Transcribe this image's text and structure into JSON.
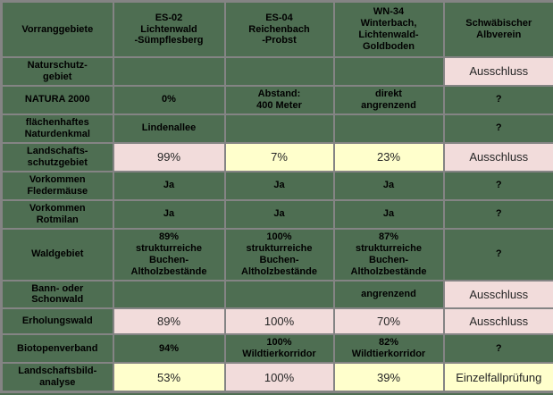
{
  "colors": {
    "green": "#4e6e52",
    "pink": "#f2dcdb",
    "yellow": "#ffffcc",
    "border": "#848484"
  },
  "table": {
    "header": {
      "corner": "Vorranggebiete",
      "columns": [
        "ES-02\nLichtenwald\n-Sümpflesberg",
        "ES-04\nReichenbach\n-Probst",
        "WN-34\nWinterbach,\nLichtenwald-\nGoldboden",
        "Schwäbischer\nAlbverein"
      ]
    },
    "rows": [
      {
        "label": "Naturschutz-\ngebiet",
        "cells": [
          {
            "text": "",
            "bg": "green",
            "bold": true
          },
          {
            "text": "",
            "bg": "green",
            "bold": true
          },
          {
            "text": "",
            "bg": "green",
            "bold": true
          },
          {
            "text": "Ausschluss",
            "bg": "pink",
            "bold": false
          }
        ]
      },
      {
        "label": "NATURA 2000",
        "cells": [
          {
            "text": "0%",
            "bg": "green",
            "bold": true
          },
          {
            "text": "Abstand:\n400 Meter",
            "bg": "green",
            "bold": true
          },
          {
            "text": "direkt\nangrenzend",
            "bg": "green",
            "bold": true
          },
          {
            "text": "?",
            "bg": "green",
            "bold": true
          }
        ]
      },
      {
        "label": "flächenhaftes\nNaturdenkmal",
        "cells": [
          {
            "text": "Lindenallee",
            "bg": "green",
            "bold": true
          },
          {
            "text": "",
            "bg": "green",
            "bold": true
          },
          {
            "text": "",
            "bg": "green",
            "bold": true
          },
          {
            "text": "?",
            "bg": "green",
            "bold": true
          }
        ]
      },
      {
        "label": "Landschafts-\nschutzgebiet",
        "cells": [
          {
            "text": "99%",
            "bg": "pink",
            "bold": false
          },
          {
            "text": "7%",
            "bg": "yellow",
            "bold": false
          },
          {
            "text": "23%",
            "bg": "yellow",
            "bold": false
          },
          {
            "text": "Ausschluss",
            "bg": "pink",
            "bold": false
          }
        ]
      },
      {
        "label": "Vorkommen\nFledermäuse",
        "cells": [
          {
            "text": "Ja",
            "bg": "green",
            "bold": true
          },
          {
            "text": "Ja",
            "bg": "green",
            "bold": true
          },
          {
            "text": "Ja",
            "bg": "green",
            "bold": true
          },
          {
            "text": "?",
            "bg": "green",
            "bold": true
          }
        ]
      },
      {
        "label": "Vorkommen\nRotmilan",
        "cells": [
          {
            "text": "Ja",
            "bg": "green",
            "bold": true
          },
          {
            "text": "Ja",
            "bg": "green",
            "bold": true
          },
          {
            "text": "Ja",
            "bg": "green",
            "bold": true
          },
          {
            "text": "?",
            "bg": "green",
            "bold": true
          }
        ]
      },
      {
        "label": "Waldgebiet",
        "cells": [
          {
            "text": "89%\nstrukturreiche\nBuchen-\nAltholzbestände",
            "bg": "green",
            "bold": true
          },
          {
            "text": "100%\nstrukturreiche\nBuchen-\nAltholzbestände",
            "bg": "green",
            "bold": true
          },
          {
            "text": "87%\nstrukturreiche\nBuchen-\nAltholzbestände",
            "bg": "green",
            "bold": true
          },
          {
            "text": "?",
            "bg": "green",
            "bold": true
          }
        ]
      },
      {
        "label": "Bann- oder\nSchonwald",
        "cells": [
          {
            "text": "",
            "bg": "green",
            "bold": true
          },
          {
            "text": "",
            "bg": "green",
            "bold": true
          },
          {
            "text": "angrenzend",
            "bg": "green",
            "bold": true
          },
          {
            "text": "Ausschluss",
            "bg": "pink",
            "bold": false
          }
        ]
      },
      {
        "label": "Erholungswald",
        "cells": [
          {
            "text": "89%",
            "bg": "pink",
            "bold": false
          },
          {
            "text": "100%",
            "bg": "pink",
            "bold": false
          },
          {
            "text": "70%",
            "bg": "pink",
            "bold": false
          },
          {
            "text": "Ausschluss",
            "bg": "pink",
            "bold": false
          }
        ]
      },
      {
        "label": "Biotopenverband",
        "cells": [
          {
            "text": "94%",
            "bg": "green",
            "bold": true
          },
          {
            "text": "100%\nWildtierkorridor",
            "bg": "green",
            "bold": true
          },
          {
            "text": "82%\nWildtierkorridor",
            "bg": "green",
            "bold": true
          },
          {
            "text": "?",
            "bg": "green",
            "bold": true
          }
        ]
      },
      {
        "label": "Landschaftsbild-\nanalyse",
        "cells": [
          {
            "text": "53%",
            "bg": "yellow",
            "bold": false
          },
          {
            "text": "100%",
            "bg": "pink",
            "bold": false
          },
          {
            "text": "39%",
            "bg": "yellow",
            "bold": false
          },
          {
            "text": "Einzelfallprüfung",
            "bg": "yellow",
            "bold": false
          }
        ]
      }
    ]
  }
}
